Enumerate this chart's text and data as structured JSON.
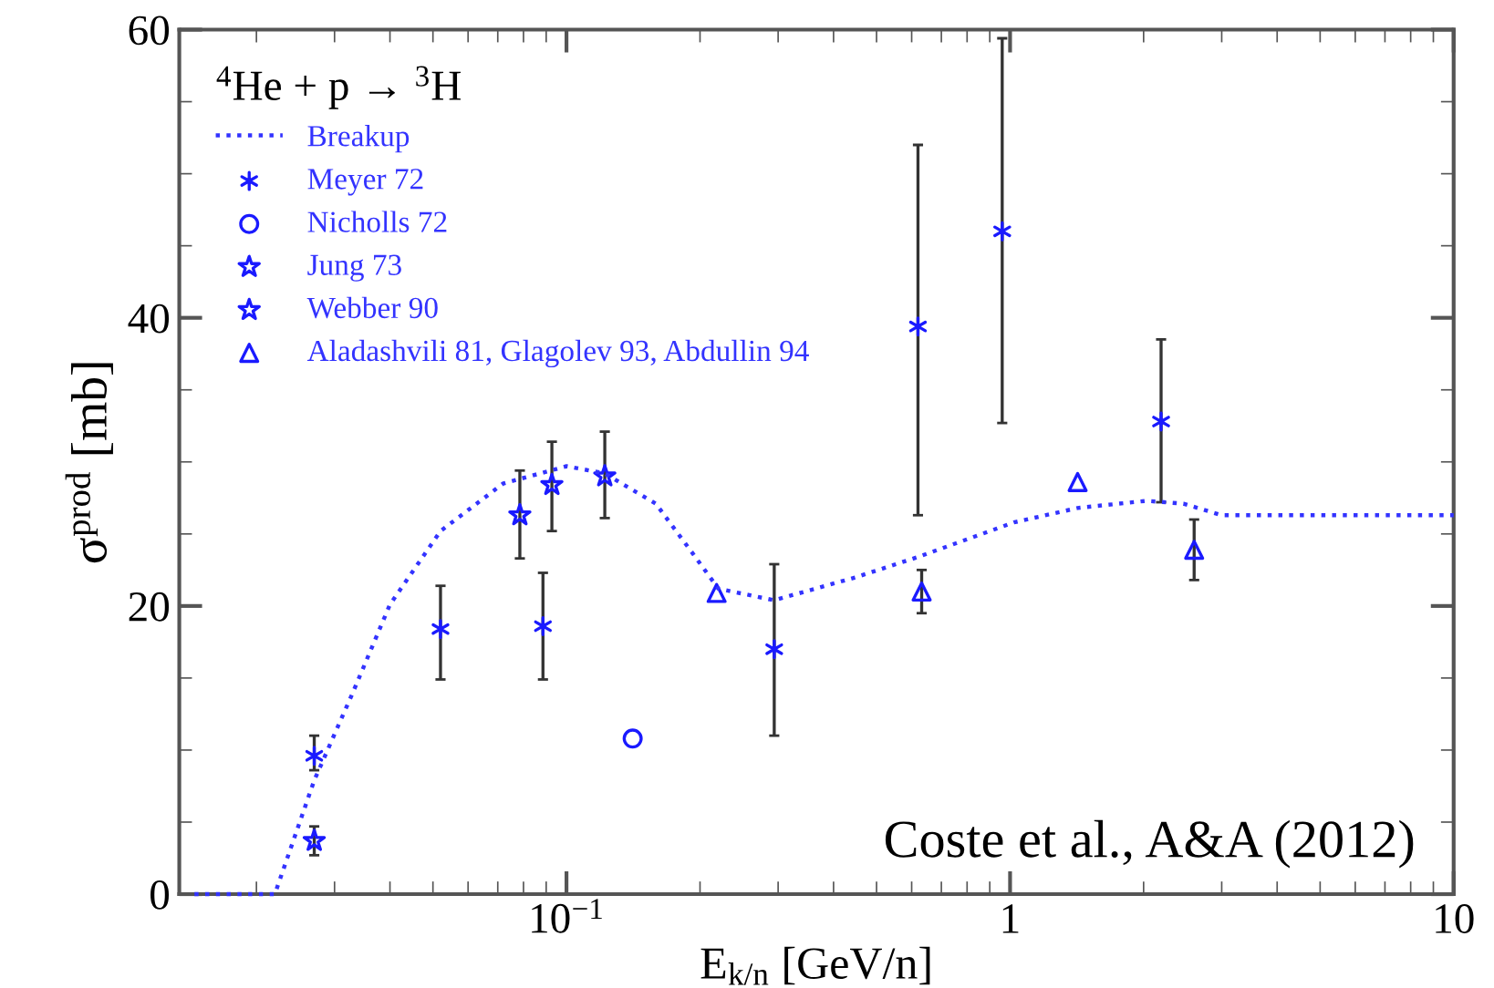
{
  "chart_data": {
    "type": "scatter",
    "xlabel": "E$_{k/n}$ [GeV/n]",
    "ylabel": "σ$^{prod}$ [mb]",
    "legend_title": "$^{4}$He + p → $^{3}$H",
    "log": "x",
    "xlim": [
      0.0134,
      10
    ],
    "ylim": [
      0,
      60
    ],
    "xticks": [
      {
        "value": 0.1,
        "label": "10$^{−1}$"
      },
      1,
      10
    ],
    "yticks": [
      0,
      20,
      40,
      60
    ],
    "grid": false,
    "legend": "top left",
    "annotations": [
      "Coste et al., A&A (2012)"
    ],
    "series": [
      {
        "name": "Breakup",
        "type": "line",
        "line_style": "dotted",
        "marker": "none",
        "color": "#3333ff",
        "x": [
          0.0145,
          0.022,
          0.027,
          0.033,
          0.04,
          0.052,
          0.072,
          0.1,
          0.122,
          0.159,
          0.192,
          0.22,
          0.294,
          0.45,
          0.62,
          1.02,
          1.42,
          2.03,
          2.46,
          3.0,
          10
        ],
        "values": [
          0,
          0,
          7.9,
          14,
          20.1,
          25.2,
          28.5,
          29.7,
          29.2,
          27.1,
          23.7,
          21.2,
          20.4,
          22.0,
          23.4,
          25.8,
          26.8,
          27.3,
          27.1,
          26.3,
          26.3
        ]
      },
      {
        "name": "Meyer 72",
        "marker": "cross",
        "color": "#1a1aff",
        "x": [
          0.027,
          0.052,
          0.0885,
          0.294,
          0.62,
          0.96,
          2.19
        ],
        "values": [
          9.6,
          18.4,
          18.6,
          17.0,
          39.4,
          46.0,
          32.8
        ],
        "errors": [
          [
            8.6,
            11.0
          ],
          [
            14.9,
            21.4
          ],
          [
            14.9,
            22.3
          ],
          [
            11.0,
            22.9
          ],
          [
            26.3,
            52.0
          ],
          [
            32.7,
            59.4
          ],
          [
            27.2,
            38.5
          ]
        ]
      },
      {
        "name": "Nicholls 72",
        "marker": "circle",
        "color": "#1a1aff",
        "x": [
          0.141
        ],
        "values": [
          10.8
        ]
      },
      {
        "name": "Jung 73",
        "marker": "star",
        "color": "#1a1aff",
        "x": [
          0.027
        ],
        "values": [
          3.7
        ],
        "errors": [
          [
            2.7,
            4.7
          ]
        ]
      },
      {
        "name": "Webber 90",
        "marker": "star",
        "color": "#1a1aff",
        "x": [
          0.0785,
          0.0927,
          0.122
        ],
        "values": [
          26.3,
          28.4,
          29.0
        ],
        "errors": [
          [
            23.3,
            29.4
          ],
          [
            25.2,
            31.4
          ],
          [
            26.1,
            32.1
          ]
        ]
      },
      {
        "name": "Aladashvili 81, Glagolev 93, Abdullin 94",
        "marker": "triangle",
        "color": "#1a1aff",
        "x": [
          0.218,
          0.632,
          1.42,
          2.6
        ],
        "values": [
          20.9,
          21.0,
          28.6,
          23.9
        ],
        "errors": [
          null,
          [
            19.5,
            22.5
          ],
          null,
          [
            21.8,
            26.0
          ]
        ]
      }
    ]
  }
}
